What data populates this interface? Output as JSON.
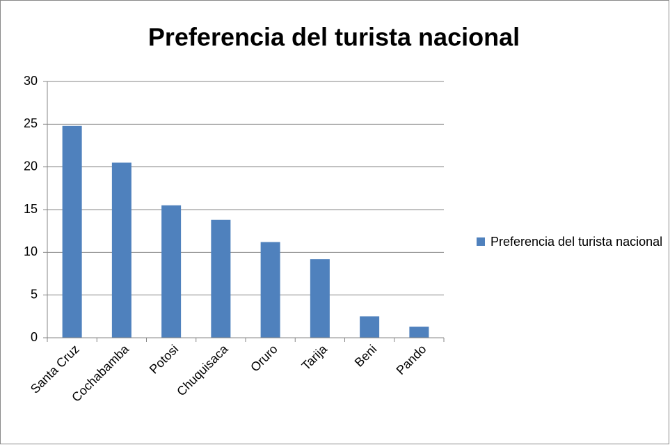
{
  "chart_data": {
    "type": "bar",
    "title": "Preferencia del turista nacional",
    "categories": [
      "Santa Cruz",
      "Cochabamba",
      "Potosi",
      "Chuquisaca",
      "Oruro",
      "Tarija",
      "Beni",
      "Pando"
    ],
    "series": [
      {
        "name": "Preferencia del turista nacional",
        "color": "#4f81bd",
        "values": [
          24.8,
          20.5,
          15.5,
          13.8,
          11.2,
          9.2,
          2.5,
          1.3
        ]
      }
    ],
    "ylim": [
      0,
      30
    ],
    "yticks": [
      0,
      5,
      10,
      15,
      20,
      25,
      30
    ],
    "grid": true,
    "legend": "right"
  }
}
